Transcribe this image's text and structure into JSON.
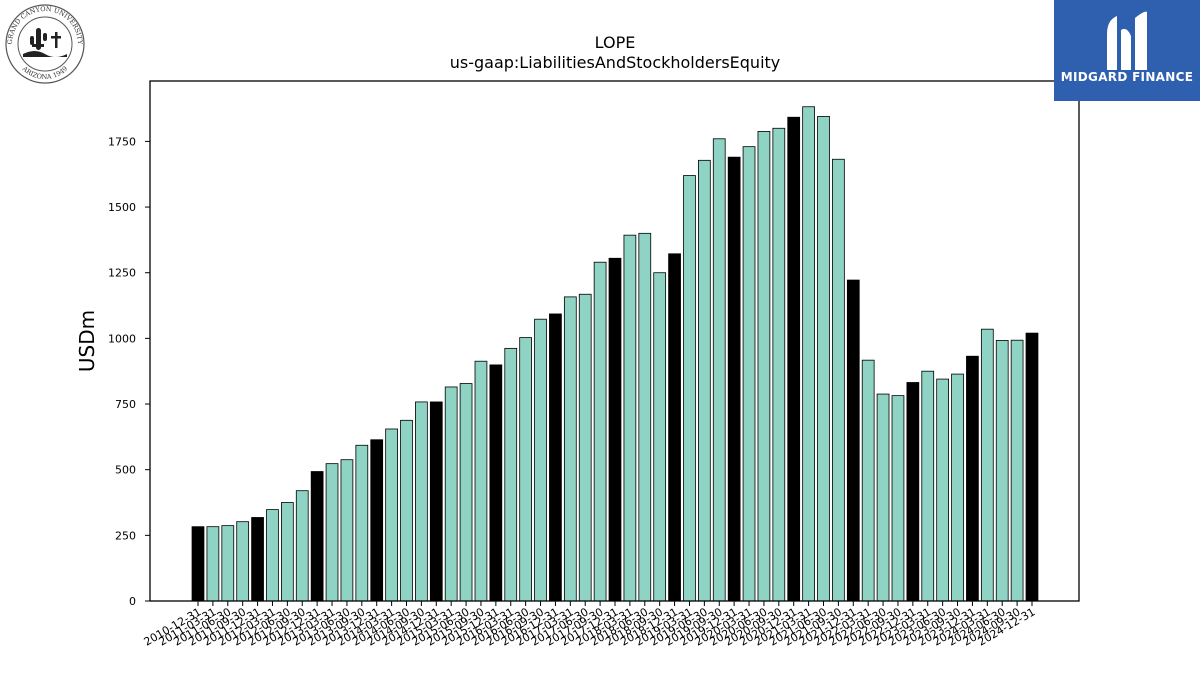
{
  "chart_data": {
    "type": "bar",
    "title": "LOPE",
    "subtitle": "us-gaap:LiabilitiesAndStockholdersEquity",
    "xlabel": "",
    "ylabel": "USDm",
    "ylim": [
      0,
      1980
    ],
    "yticks": [
      0,
      250,
      500,
      750,
      1000,
      1250,
      1500,
      1750
    ],
    "grid": false,
    "colors": {
      "quarter": "#8ed3c3",
      "year_end": "#000000",
      "edge": "#000000"
    },
    "categories": [
      "2010-12-31",
      "2011-03-31",
      "2011-06-30",
      "2011-09-30",
      "2011-12-31",
      "2012-03-31",
      "2012-06-30",
      "2012-09-30",
      "2012-12-31",
      "2013-03-31",
      "2013-06-30",
      "2013-09-30",
      "2013-12-31",
      "2014-03-31",
      "2014-06-30",
      "2014-09-30",
      "2014-12-31",
      "2015-03-31",
      "2015-06-30",
      "2015-09-30",
      "2015-12-31",
      "2016-03-31",
      "2016-06-30",
      "2016-09-30",
      "2016-12-31",
      "2017-03-31",
      "2017-06-30",
      "2017-09-30",
      "2017-12-31",
      "2018-03-31",
      "2018-06-30",
      "2018-09-30",
      "2018-12-31",
      "2019-03-31",
      "2019-06-30",
      "2019-09-30",
      "2019-12-31",
      "2020-03-31",
      "2020-06-30",
      "2020-09-30",
      "2020-12-31",
      "2021-03-31",
      "2021-06-30",
      "2021-09-30",
      "2021-12-31",
      "2022-03-31",
      "2022-06-30",
      "2022-09-30",
      "2022-12-31",
      "2023-03-31",
      "2023-06-30",
      "2023-09-30",
      "2023-12-31",
      "2024-03-31",
      "2024-06-30",
      "2024-09-30",
      "2024-12-31"
    ],
    "values": [
      283,
      283,
      287,
      302,
      318,
      348,
      375,
      420,
      493,
      523,
      538,
      593,
      614,
      655,
      688,
      758,
      758,
      815,
      828,
      913,
      899,
      962,
      1003,
      1073,
      1093,
      1158,
      1168,
      1290,
      1305,
      1393,
      1400,
      1250,
      1322,
      1620,
      1678,
      1760,
      1690,
      1730,
      1788,
      1800,
      1842,
      1882,
      1845,
      1682,
      1222,
      917,
      788,
      782,
      832,
      875,
      845,
      864,
      932,
      1035,
      992,
      993,
      1020
    ],
    "year_end_flags": [
      1,
      0,
      0,
      0,
      1,
      0,
      0,
      0,
      1,
      0,
      0,
      0,
      1,
      0,
      0,
      0,
      1,
      0,
      0,
      0,
      1,
      0,
      0,
      0,
      1,
      0,
      0,
      0,
      1,
      0,
      0,
      0,
      1,
      0,
      0,
      0,
      1,
      0,
      0,
      0,
      1,
      0,
      0,
      0,
      1,
      0,
      0,
      0,
      1,
      0,
      0,
      0,
      1,
      0,
      0,
      0,
      1
    ]
  },
  "logos": {
    "left_seal": {
      "text_top": "GRAND CANYON UNIVERSITY",
      "text_bottom": "ARIZONA 1949"
    },
    "right_brand": {
      "name": "MIDGARD FINANCE",
      "bg": "#2f5faf"
    }
  }
}
